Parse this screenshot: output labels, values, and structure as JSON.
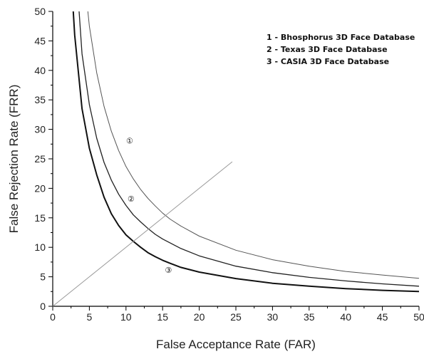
{
  "chart_data": {
    "type": "line",
    "title": "",
    "xlabel": "False Acceptance Rate (FAR)",
    "ylabel": "False Rejection Rate (FRR)",
    "xlim": [
      0,
      50
    ],
    "ylim": [
      0,
      50
    ],
    "xticks": [
      "0",
      "5",
      "10",
      "15",
      "20",
      "25",
      "30",
      "35",
      "40",
      "45",
      "50"
    ],
    "yticks": [
      "0",
      "5",
      "10",
      "15",
      "20",
      "25",
      "30",
      "35",
      "40",
      "45",
      "50"
    ],
    "grid": false,
    "legend_position": "top-right",
    "legend": [
      "1 - Bhosphorus 3D Face Database",
      "2 - Texas 3D Face Database",
      "3 - CASIA 3D Face Database"
    ],
    "series": [
      {
        "label": "①",
        "x": [
          4.8,
          5,
          6,
          7,
          8,
          9,
          10,
          11,
          12,
          13,
          14,
          15,
          16,
          17.5,
          20,
          25,
          30,
          35,
          40,
          45,
          50
        ],
        "y": [
          50,
          47.5,
          39.6,
          33.9,
          29.7,
          26.4,
          23.7,
          21.6,
          19.8,
          18.3,
          17.0,
          15.8,
          14.8,
          13.6,
          11.9,
          9.5,
          7.9,
          6.8,
          5.9,
          5.3,
          4.75
        ],
        "label_at": [
          10.5,
          28.3
        ]
      },
      {
        "label": "②",
        "x": [
          3.6,
          4,
          5,
          6,
          7,
          8,
          9,
          10,
          11,
          12,
          13,
          14,
          15,
          17.5,
          20,
          25,
          30,
          35,
          40,
          45,
          50
        ],
        "y": [
          50,
          42.8,
          34.2,
          28.5,
          24.4,
          21.4,
          19.0,
          17.1,
          15.5,
          14.3,
          13.2,
          12.2,
          11.4,
          9.8,
          8.55,
          6.8,
          5.7,
          4.9,
          4.3,
          3.8,
          3.4
        ],
        "label_at": [
          10.7,
          18.5
        ]
      },
      {
        "label": "③",
        "x": [
          2.8,
          3,
          4,
          5,
          6,
          7,
          8,
          9,
          10,
          11,
          12,
          13,
          14,
          15,
          16,
          17.5,
          20,
          25,
          30,
          35,
          40,
          45,
          50
        ],
        "y": [
          50,
          46,
          33.5,
          26.8,
          22.3,
          18.5,
          15.7,
          13.7,
          12.1,
          11.0,
          10.0,
          9.1,
          8.4,
          7.8,
          7.3,
          6.6,
          5.8,
          4.7,
          3.9,
          3.4,
          3.0,
          2.7,
          2.5
        ],
        "label_at": [
          15.8,
          6.4
        ]
      },
      {
        "label": "",
        "x": [
          0,
          24.5
        ],
        "y": [
          0,
          24.5
        ]
      }
    ]
  }
}
